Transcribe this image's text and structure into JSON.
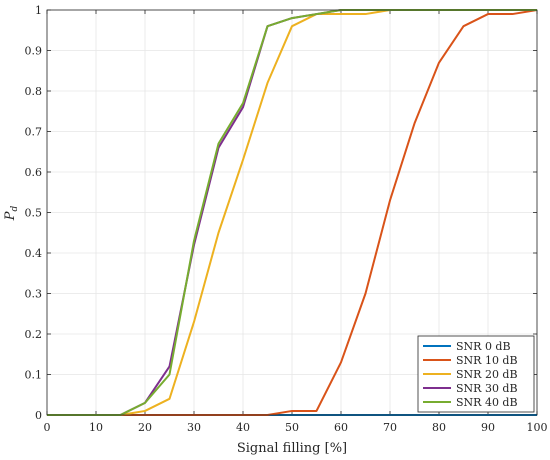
{
  "chart_data": {
    "type": "line",
    "xlabel": "Signal filling [%]",
    "ylabel_main": "P",
    "ylabel_sub": "d",
    "xlim": [
      0,
      100
    ],
    "ylim": [
      0,
      1
    ],
    "xticks": [
      "0",
      "10",
      "20",
      "30",
      "40",
      "50",
      "60",
      "70",
      "80",
      "90",
      "100"
    ],
    "yticks": [
      "0",
      "0.1",
      "0.2",
      "0.3",
      "0.4",
      "0.5",
      "0.6",
      "0.7",
      "0.8",
      "0.9",
      "1"
    ],
    "grid": true,
    "legend_position": "bottom-right",
    "x": [
      0,
      5,
      10,
      15,
      20,
      25,
      30,
      35,
      40,
      45,
      50,
      55,
      60,
      65,
      70,
      75,
      80,
      85,
      90,
      95,
      100
    ],
    "series": [
      {
        "name": "SNR 0 dB",
        "color": "#0072BD",
        "values": [
          0,
          0,
          0,
          0,
          0,
          0,
          0,
          0,
          0,
          0,
          0,
          0,
          0,
          0,
          0,
          0,
          0,
          0,
          0,
          0,
          0
        ]
      },
      {
        "name": "SNR 10 dB",
        "color": "#D95319",
        "values": [
          0,
          0,
          0,
          0,
          0,
          0,
          0,
          0,
          0,
          0,
          0.01,
          0.01,
          0.13,
          0.3,
          0.53,
          0.72,
          0.87,
          0.96,
          0.99,
          0.99,
          1.0
        ]
      },
      {
        "name": "SNR 20 dB",
        "color": "#EDB120",
        "values": [
          0,
          0,
          0,
          0,
          0.01,
          0.04,
          0.23,
          0.45,
          0.63,
          0.82,
          0.96,
          0.99,
          0.99,
          0.99,
          1.0,
          1.0,
          1.0,
          1.0,
          1.0,
          1.0,
          1.0
        ]
      },
      {
        "name": "SNR 30 dB",
        "color": "#7E2F8E",
        "values": [
          0,
          0,
          0,
          0,
          0.03,
          0.12,
          0.42,
          0.66,
          0.76,
          0.96,
          0.98,
          0.99,
          1.0,
          1.0,
          1.0,
          1.0,
          1.0,
          1.0,
          1.0,
          1.0,
          1.0
        ]
      },
      {
        "name": "SNR 40 dB",
        "color": "#77AC30",
        "values": [
          0,
          0,
          0,
          0,
          0.03,
          0.1,
          0.43,
          0.67,
          0.77,
          0.96,
          0.98,
          0.99,
          1.0,
          1.0,
          1.0,
          1.0,
          1.0,
          1.0,
          1.0,
          1.0,
          1.0
        ]
      }
    ]
  }
}
